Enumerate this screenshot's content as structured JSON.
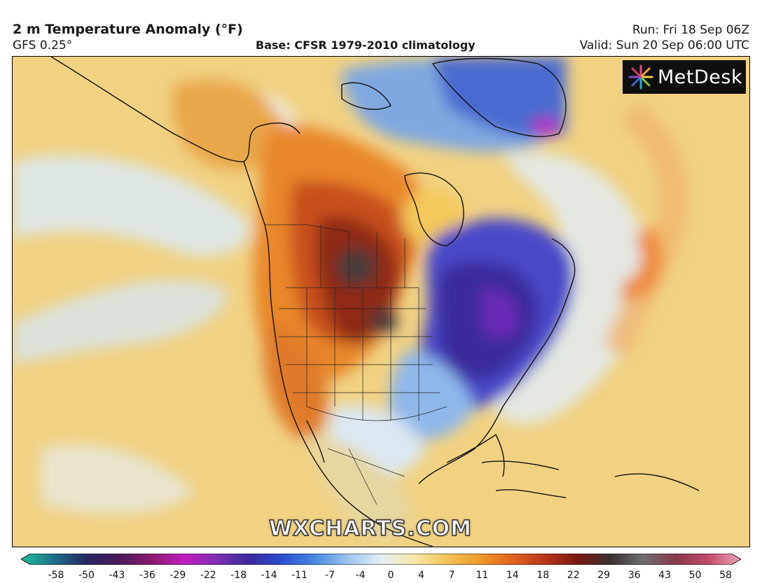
{
  "header": {
    "title": "2 m Temperature Anomaly (°F)",
    "model": "GFS 0.25°",
    "base": "Base: CFSR 1979-2010 climatology",
    "run": "Run: Fri 18 Sep 06Z",
    "valid": "Valid: Sun 20 Sep 06:00 UTC"
  },
  "logo": {
    "text": "MetDesk",
    "icon": "metdesk-starburst-icon"
  },
  "watermark": "WXCHARTS.COM",
  "colorbar": {
    "ticks": [
      "-58",
      "-50",
      "-43",
      "-36",
      "-29",
      "-22",
      "-18",
      "-14",
      "-11",
      "-7",
      "-4",
      "0",
      "4",
      "7",
      "11",
      "14",
      "18",
      "22",
      "29",
      "36",
      "43",
      "50",
      "58"
    ],
    "colors": [
      "#1fbf9a",
      "#1f6f8a",
      "#26285e",
      "#4a1a5a",
      "#8a1a6e",
      "#c21ec0",
      "#7a2fb0",
      "#3a2aa0",
      "#2a4ed0",
      "#4a8ae0",
      "#9cc6ee",
      "#e4eef6",
      "#f7e7a8",
      "#f2c45a",
      "#ee9a2a",
      "#e0621c",
      "#b8361a",
      "#7a1a12",
      "#3a3030",
      "#6e6e6e",
      "#8a3a4a",
      "#c04a6a",
      "#f0a6b8"
    ]
  },
  "map_colors": {
    "ocean": "#f1d283",
    "cold_band": "#d9e8f2",
    "warm_core": "#e9872b",
    "hot_core": "#8f2a12",
    "cold_core": "#3b2a9c",
    "violet": "#6b2bb6",
    "coast": "#111111"
  }
}
